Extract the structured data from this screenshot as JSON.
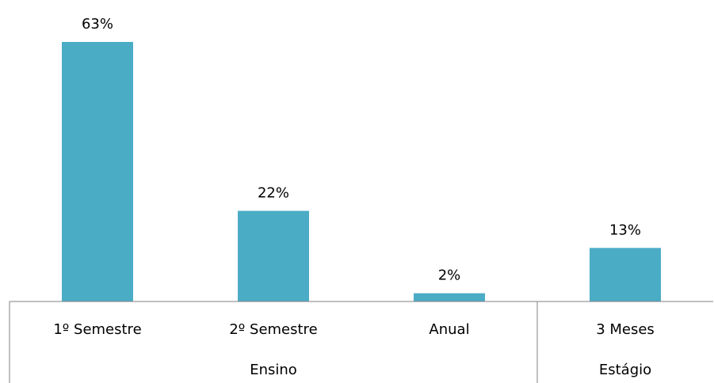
{
  "chart_data": {
    "type": "bar",
    "categories": [
      "1º Semestre",
      "2º Semestre",
      "Anual",
      "3 Meses"
    ],
    "values": [
      63,
      22,
      2,
      13
    ],
    "data_labels": [
      "63%",
      "22%",
      "2%",
      "13%"
    ],
    "groups": [
      {
        "label": "Ensino",
        "categories": [
          "1º Semestre",
          "2º Semestre",
          "Anual"
        ]
      },
      {
        "label": "Estágio",
        "categories": [
          "3 Meses"
        ]
      }
    ],
    "title": "",
    "xlabel": "",
    "ylabel": "",
    "ylim": [
      0,
      63
    ],
    "grid": false,
    "legend": "none",
    "bar_color": "#4bacc6",
    "axis_color": "#808080"
  }
}
